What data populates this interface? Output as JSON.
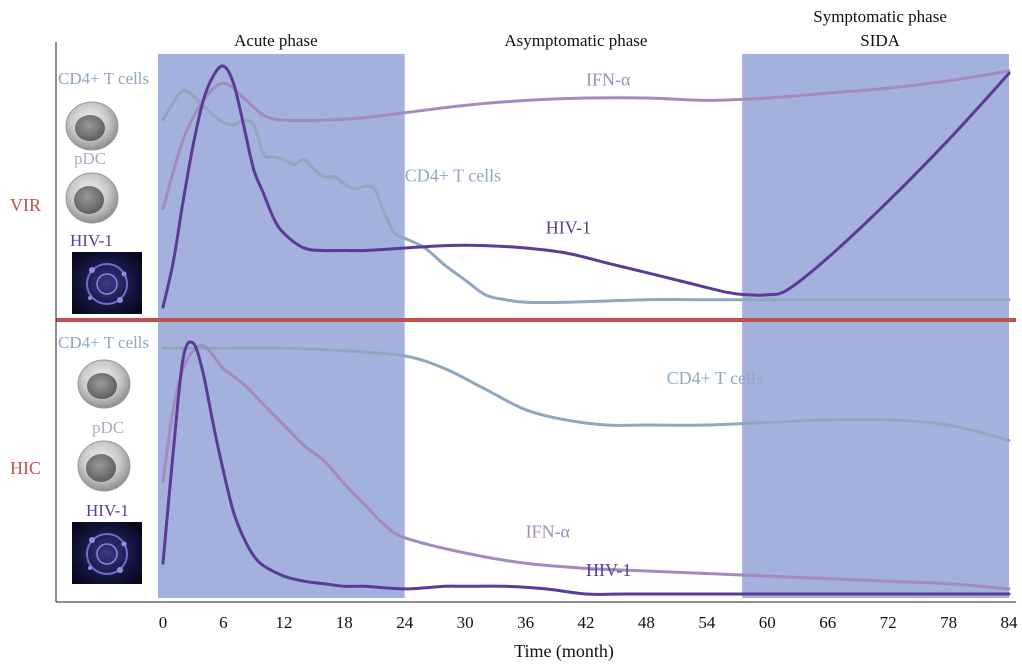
{
  "chart_data": {
    "type": "line",
    "xlabel": "Time (month)",
    "x_ticks": [
      0,
      6,
      12,
      18,
      24,
      30,
      36,
      42,
      48,
      54,
      60,
      66,
      72,
      78,
      84
    ],
    "xlim": [
      0,
      84
    ],
    "phases": [
      {
        "label": "Acute phase",
        "x_start": 0,
        "x_end": 24,
        "shaded": true
      },
      {
        "label": "Asymptomatic phase",
        "x_start": 24,
        "x_end": 58,
        "shaded": false
      },
      {
        "label": "Symptomatic phase",
        "label2": "SIDA",
        "x_start": 58,
        "x_end": 84,
        "shaded": true
      }
    ],
    "panels": [
      {
        "group": "VIR",
        "legend": {
          "cd4": "CD4+ T cells",
          "pdc": "pDC",
          "hiv": "HIV-1"
        },
        "series": [
          {
            "name": "IFN-α",
            "color": "#a38bbd",
            "x": [
              0,
              2,
              4,
              6,
              8,
              10,
              12,
              16,
              20,
              24,
              30,
              36,
              42,
              48,
              54,
              60,
              66,
              72,
              78,
              84
            ],
            "y": [
              0.42,
              0.7,
              0.86,
              0.93,
              0.87,
              0.8,
              0.78,
              0.78,
              0.79,
              0.81,
              0.84,
              0.86,
              0.87,
              0.87,
              0.86,
              0.87,
              0.89,
              0.91,
              0.94,
              0.98
            ]
          },
          {
            "name": "CD4+ T cells",
            "color": "#8fa7bf",
            "x": [
              0,
              1,
              2,
              3,
              4,
              5,
              6,
              7,
              8,
              9,
              10,
              11,
              12,
              13,
              14,
              15,
              16,
              17,
              18,
              19,
              20,
              21,
              22,
              23,
              24,
              26,
              28,
              30,
              32,
              34,
              36,
              40,
              48,
              54,
              60,
              66,
              72,
              78,
              84
            ],
            "y": [
              0.78,
              0.85,
              0.9,
              0.88,
              0.84,
              0.8,
              0.77,
              0.76,
              0.78,
              0.76,
              0.64,
              0.63,
              0.62,
              0.6,
              0.62,
              0.58,
              0.55,
              0.55,
              0.52,
              0.5,
              0.51,
              0.5,
              0.4,
              0.32,
              0.3,
              0.26,
              0.19,
              0.13,
              0.07,
              0.05,
              0.04,
              0.04,
              0.05,
              0.05,
              0.05,
              0.05,
              0.05,
              0.05,
              0.05
            ]
          },
          {
            "name": "HIV-1",
            "color": "#5a3c96",
            "x": [
              0,
              1,
              2,
              3,
              4,
              5,
              6,
              7,
              8,
              9,
              10,
              11,
              12,
              14,
              16,
              18,
              20,
              24,
              28,
              32,
              36,
              40,
              44,
              48,
              52,
              56,
              58,
              60,
              62,
              66,
              72,
              78,
              84
            ],
            "y": [
              0.02,
              0.2,
              0.45,
              0.68,
              0.86,
              0.96,
              1.0,
              0.93,
              0.76,
              0.58,
              0.48,
              0.38,
              0.32,
              0.26,
              0.25,
              0.25,
              0.25,
              0.26,
              0.27,
              0.27,
              0.26,
              0.24,
              0.2,
              0.16,
              0.12,
              0.08,
              0.07,
              0.07,
              0.09,
              0.22,
              0.45,
              0.7,
              0.97
            ]
          }
        ]
      },
      {
        "group": "HIC",
        "legend": {
          "cd4": "CD4+ T cells",
          "pdc": "pDC",
          "hiv": "HIV-1"
        },
        "series": [
          {
            "name": "CD4+ T cells",
            "color": "#8fa7bf",
            "x": [
              0,
              3,
              6,
              12,
              18,
              24,
              28,
              32,
              36,
              40,
              44,
              48,
              54,
              60,
              66,
              72,
              78,
              84
            ],
            "y": [
              0.96,
              0.96,
              0.96,
              0.96,
              0.95,
              0.93,
              0.88,
              0.8,
              0.72,
              0.68,
              0.66,
              0.66,
              0.66,
              0.67,
              0.68,
              0.68,
              0.66,
              0.6
            ]
          },
          {
            "name": "IFN-α",
            "color": "#a38bbd",
            "x": [
              0,
              1,
              2,
              3,
              4,
              5,
              6,
              8,
              10,
              12,
              14,
              16,
              18,
              20,
              22,
              24,
              30,
              36,
              42,
              48,
              54,
              60,
              66,
              72,
              78,
              84
            ],
            "y": [
              0.44,
              0.72,
              0.88,
              0.95,
              0.97,
              0.93,
              0.88,
              0.82,
              0.74,
              0.66,
              0.58,
              0.52,
              0.43,
              0.35,
              0.27,
              0.22,
              0.16,
              0.12,
              0.1,
              0.09,
              0.08,
              0.07,
              0.06,
              0.05,
              0.04,
              0.02
            ]
          },
          {
            "name": "HIV-1",
            "color": "#5a3c96",
            "x": [
              0,
              1,
              2,
              3,
              4,
              5,
              6,
              7,
              8,
              9,
              10,
              12,
              14,
              16,
              18,
              20,
              24,
              28,
              30,
              34,
              38,
              42,
              46,
              54,
              60,
              70,
              84
            ],
            "y": [
              0.12,
              0.55,
              0.92,
              0.98,
              0.86,
              0.66,
              0.48,
              0.32,
              0.22,
              0.15,
              0.11,
              0.07,
              0.05,
              0.04,
              0.03,
              0.03,
              0.02,
              0.03,
              0.03,
              0.03,
              0.02,
              0.0,
              0.0,
              0.0,
              0.0,
              0.0,
              0.0
            ]
          }
        ]
      }
    ],
    "series_labels": [
      {
        "panel": 0,
        "text": "IFN-α",
        "x": 42,
        "y": 0.92,
        "color": "#a38bbd"
      },
      {
        "panel": 0,
        "text": "CD4+ T cells",
        "x": 24,
        "y": 0.53,
        "color": "#8fa7bf"
      },
      {
        "panel": 0,
        "text": "HIV-1",
        "x": 38,
        "y": 0.32,
        "color": "#5a3c96"
      },
      {
        "panel": 1,
        "text": "CD4+ T cells",
        "x": 50,
        "y": 0.82,
        "color": "#8fa7bf"
      },
      {
        "panel": 1,
        "text": "IFN-α",
        "x": 36,
        "y": 0.22,
        "color": "#a38bbd"
      },
      {
        "panel": 1,
        "text": "HIV-1",
        "x": 42,
        "y": 0.07,
        "color": "#5a3c96"
      }
    ],
    "colors": {
      "phase_band": "#7f93cf",
      "divider": "#c0504d",
      "group_label": "#c0504d",
      "axis": "#222222",
      "cd4_label": "#8fa7bf",
      "pdc_label": "#b7a3cf",
      "hiv_label": "#5a3c96"
    },
    "grid": false
  }
}
